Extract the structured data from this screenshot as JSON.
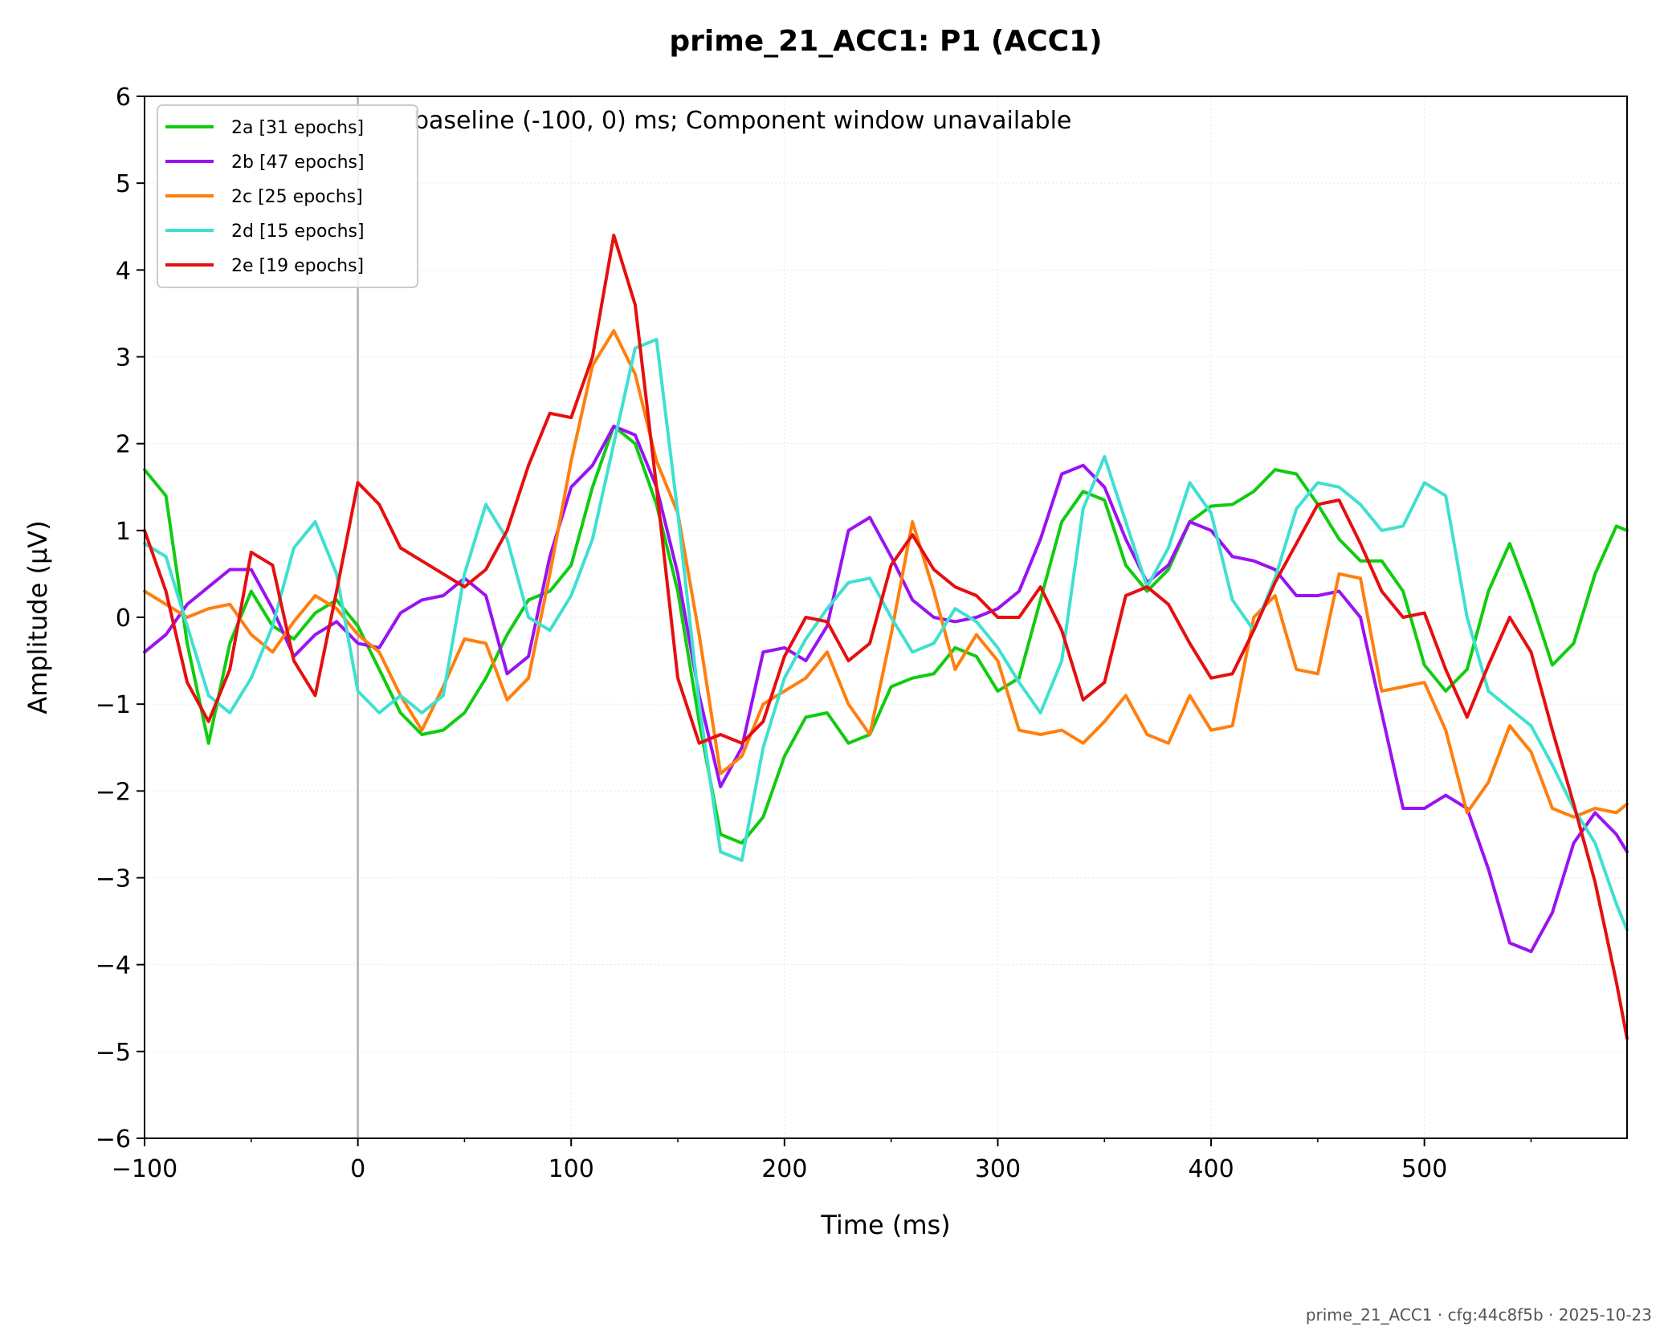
{
  "footer": "prime_21_ACC1 · cfg:44c8f5b · 2025-10-23",
  "colors": {
    "2a": "#10cc10",
    "2b": "#9b12f2",
    "2c": "#ff7f0e",
    "2d": "#40e0d0",
    "2e": "#e60f0f",
    "zero_line": "#b0b0b0",
    "grid": "#e6e6e6"
  },
  "chart_data": {
    "type": "line",
    "title": "prime_21_ACC1: P1 (ACC1)",
    "annotation": "baseline (-100, 0) ms; Component window unavailable",
    "xlabel": "Time (ms)",
    "ylabel": "Amplitude (µV)",
    "xlim": [
      -100,
      595
    ],
    "ylim": [
      -6,
      6
    ],
    "xticks": [
      -100,
      0,
      100,
      200,
      300,
      400,
      500
    ],
    "xtick_labels": [
      "−100",
      "0",
      "100",
      "200",
      "300",
      "400",
      "500"
    ],
    "yticks": [
      -6,
      -5,
      -4,
      -3,
      -2,
      -1,
      0,
      1,
      2,
      3,
      4,
      5,
      6
    ],
    "ytick_labels": [
      "−6",
      "−5",
      "−4",
      "−3",
      "−2",
      "−1",
      "0",
      "1",
      "2",
      "3",
      "4",
      "5",
      "6"
    ],
    "vline_x": 0,
    "grid": true,
    "legend_position": "top-left",
    "x": [
      -100,
      -90,
      -80,
      -70,
      -60,
      -50,
      -40,
      -30,
      -20,
      -10,
      0,
      10,
      20,
      30,
      40,
      50,
      60,
      70,
      80,
      90,
      100,
      110,
      120,
      130,
      140,
      150,
      160,
      170,
      180,
      190,
      200,
      210,
      220,
      230,
      240,
      250,
      260,
      270,
      280,
      290,
      300,
      310,
      320,
      330,
      340,
      350,
      360,
      370,
      380,
      390,
      400,
      410,
      420,
      430,
      440,
      450,
      460,
      470,
      480,
      490,
      500,
      510,
      520,
      530,
      540,
      550,
      560,
      570,
      580,
      590,
      595
    ],
    "series": [
      {
        "name": "2a [31 epochs]",
        "color_key": "2a",
        "values": [
          1.7,
          1.4,
          -0.3,
          -1.45,
          -0.3,
          0.3,
          -0.1,
          -0.25,
          0.05,
          0.2,
          -0.1,
          -0.6,
          -1.1,
          -1.35,
          -1.3,
          -1.1,
          -0.7,
          -0.2,
          0.2,
          0.3,
          0.6,
          1.5,
          2.2,
          2.0,
          1.3,
          0.3,
          -1.2,
          -2.5,
          -2.6,
          -2.3,
          -1.6,
          -1.15,
          -1.1,
          -1.45,
          -1.35,
          -0.8,
          -0.7,
          -0.65,
          -0.35,
          -0.45,
          -0.85,
          -0.7,
          0.2,
          1.1,
          1.45,
          1.35,
          0.6,
          0.3,
          0.55,
          1.1,
          1.28,
          1.3,
          1.45,
          1.7,
          1.65,
          1.3,
          0.9,
          0.65,
          0.65,
          0.3,
          -0.55,
          -0.85,
          -0.6,
          0.3,
          0.85,
          0.2,
          -0.55,
          -0.3,
          0.5,
          1.05,
          1.0
        ]
      },
      {
        "name": "2b [47 epochs]",
        "color_key": "2b",
        "values": [
          -0.4,
          -0.2,
          0.15,
          0.35,
          0.55,
          0.55,
          0.1,
          -0.45,
          -0.2,
          -0.05,
          -0.3,
          -0.35,
          0.05,
          0.2,
          0.25,
          0.45,
          0.25,
          -0.65,
          -0.45,
          0.7,
          1.5,
          1.75,
          2.2,
          2.1,
          1.5,
          0.5,
          -0.9,
          -1.95,
          -1.5,
          -0.4,
          -0.35,
          -0.5,
          -0.1,
          1.0,
          1.15,
          0.7,
          0.2,
          0.0,
          -0.05,
          0.0,
          0.1,
          0.3,
          0.9,
          1.65,
          1.75,
          1.5,
          0.9,
          0.4,
          0.6,
          1.1,
          1.0,
          0.7,
          0.65,
          0.55,
          0.25,
          0.25,
          0.3,
          0.0,
          -1.1,
          -2.2,
          -2.2,
          -2.05,
          -2.2,
          -2.9,
          -3.75,
          -3.85,
          -3.4,
          -2.6,
          -2.25,
          -2.5,
          -2.7
        ]
      },
      {
        "name": "2c [25 epochs]",
        "color_key": "2c",
        "values": [
          0.3,
          0.15,
          0.0,
          0.1,
          0.15,
          -0.2,
          -0.4,
          -0.05,
          0.25,
          0.1,
          -0.2,
          -0.4,
          -0.9,
          -1.3,
          -0.8,
          -0.25,
          -0.3,
          -0.95,
          -0.7,
          0.5,
          1.8,
          2.9,
          3.3,
          2.8,
          1.8,
          1.2,
          -0.2,
          -1.8,
          -1.6,
          -1.0,
          -0.85,
          -0.7,
          -0.4,
          -1.0,
          -1.35,
          -0.2,
          1.1,
          0.3,
          -0.6,
          -0.2,
          -0.5,
          -1.3,
          -1.35,
          -1.3,
          -1.45,
          -1.2,
          -0.9,
          -1.35,
          -1.45,
          -0.9,
          -1.3,
          -1.25,
          0.0,
          0.25,
          -0.6,
          -0.65,
          0.5,
          0.45,
          -0.85,
          -0.8,
          -0.75,
          -1.3,
          -2.25,
          -1.9,
          -1.25,
          -1.55,
          -2.2,
          -2.3,
          -2.2,
          -2.25,
          -2.15
        ]
      },
      {
        "name": "2d [15 epochs]",
        "color_key": "2d",
        "values": [
          0.85,
          0.7,
          -0.1,
          -0.9,
          -1.1,
          -0.7,
          -0.1,
          0.8,
          1.1,
          0.5,
          -0.85,
          -1.1,
          -0.9,
          -1.1,
          -0.9,
          0.5,
          1.3,
          0.9,
          0.0,
          -0.15,
          0.25,
          0.9,
          2.0,
          3.1,
          3.2,
          1.2,
          -1.0,
          -2.7,
          -2.8,
          -1.5,
          -0.7,
          -0.25,
          0.1,
          0.4,
          0.45,
          0.0,
          -0.4,
          -0.3,
          0.1,
          -0.05,
          -0.35,
          -0.75,
          -1.1,
          -0.5,
          1.25,
          1.85,
          1.1,
          0.35,
          0.8,
          1.55,
          1.2,
          0.2,
          -0.15,
          0.45,
          1.25,
          1.55,
          1.5,
          1.3,
          1.0,
          1.05,
          1.55,
          1.4,
          0.0,
          -0.85,
          -1.05,
          -1.25,
          -1.7,
          -2.2,
          -2.6,
          -3.3,
          -3.6
        ]
      },
      {
        "name": "2e [19 epochs]",
        "color_key": "2e",
        "values": [
          1.0,
          0.3,
          -0.75,
          -1.2,
          -0.6,
          0.75,
          0.6,
          -0.5,
          -0.9,
          0.3,
          1.55,
          1.3,
          0.8,
          0.65,
          0.5,
          0.35,
          0.55,
          1.0,
          1.75,
          2.35,
          2.3,
          3.0,
          4.4,
          3.6,
          1.5,
          -0.7,
          -1.45,
          -1.35,
          -1.45,
          -1.2,
          -0.45,
          0.0,
          -0.05,
          -0.5,
          -0.3,
          0.6,
          0.95,
          0.55,
          0.35,
          0.25,
          0.0,
          0.0,
          0.35,
          -0.15,
          -0.95,
          -0.75,
          0.25,
          0.35,
          0.15,
          -0.3,
          -0.7,
          -0.65,
          -0.15,
          0.4,
          0.85,
          1.3,
          1.35,
          0.85,
          0.3,
          0.0,
          0.05,
          -0.6,
          -1.15,
          -0.55,
          0.0,
          -0.4,
          -1.3,
          -2.15,
          -3.05,
          -4.2,
          -4.85
        ]
      }
    ]
  }
}
